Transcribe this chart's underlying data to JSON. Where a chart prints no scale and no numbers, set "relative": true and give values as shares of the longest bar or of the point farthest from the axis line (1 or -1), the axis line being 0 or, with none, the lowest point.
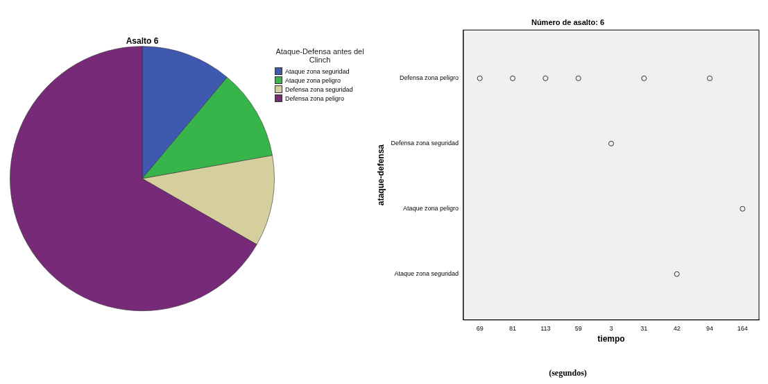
{
  "chart_data": [
    {
      "type": "pie",
      "title": "Asalto 6",
      "legend_title": "Ataque-Defensa antes del Clinch",
      "legend": "top right",
      "categories": [
        "Ataque zona seguridad",
        "Ataque zona peligro",
        "Defensa zona seguridad",
        "Defensa zona peligro"
      ],
      "values": [
        11.1,
        11.1,
        11.1,
        66.7
      ],
      "colors": [
        "#3f58b0",
        "#37b54a",
        "#d5cf9d",
        "#772a77"
      ]
    },
    {
      "type": "scatter",
      "title": "Número de asalto: 6",
      "xlabel": "tiempo",
      "ylabel": "ataque-defensa",
      "grid": false,
      "marker": "circle",
      "categories": [
        "69",
        "81",
        "113",
        "59",
        "3",
        "31",
        "42",
        "94",
        "164"
      ],
      "relative": true,
      "series": [
        {
          "color": "#333333",
          "x": [
            "69",
            "81",
            "113",
            "59",
            "31",
            "94",
            "3",
            "164",
            "42"
          ],
          "values": [
            1,
            1,
            1,
            1,
            1,
            1,
            0.73,
            0.46,
            0.19
          ]
        }
      ],
      "annotations": [
        "Defensa zona peligro",
        "Defensa zona seguridad",
        "Ataque zona peligro",
        "Ataque zona seguridad",
        "(segundos)"
      ]
    }
  ]
}
